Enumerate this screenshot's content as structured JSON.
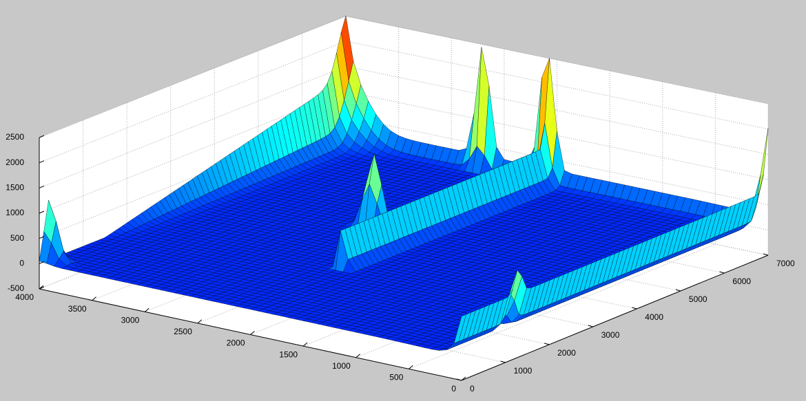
{
  "chart_data": {
    "type": "surface",
    "title": "",
    "xlabel": "",
    "ylabel": "",
    "zlabel": "",
    "xlim": [
      0,
      4000
    ],
    "ylim": [
      0,
      7000
    ],
    "zlim": [
      -500,
      2500
    ],
    "x_ticks": [
      "0",
      "500",
      "1000",
      "1500",
      "2000",
      "2500",
      "3000",
      "3500",
      "4000"
    ],
    "y_ticks": [
      "0",
      "1000",
      "2000",
      "3000",
      "4000",
      "5000",
      "6000",
      "7000"
    ],
    "z_ticks": [
      "-500",
      "0",
      "500",
      "1000",
      "1500",
      "2000",
      "2500"
    ],
    "grid": true,
    "colormap": "jet",
    "colors": {
      "background": "#c8c8c8",
      "axes_face": "#ffffff",
      "jet_low": "#00007f",
      "jet_high": "#7f0000"
    },
    "surface_features": [
      {
        "name": "outer rim wall (x = 0 edge)",
        "z_approx": 850
      },
      {
        "name": "interior raised wall",
        "z_approx": 1000
      },
      {
        "name": "back rim wall (y = 7000 edge)",
        "z_approx": 300
      },
      {
        "name": "corner ridge (x = 4000, y = 7000)",
        "z_max_approx": 2350
      },
      {
        "name": "corner spike (x = 0, y = 7000)",
        "z_max_approx": 1800
      },
      {
        "name": "spike near x = 2700, y = 7000",
        "z_max_approx": 2450
      },
      {
        "name": "spike near x = 2100, y = 7000",
        "z_max_approx": 2500
      },
      {
        "name": "spike near x = 2500, y = 4000",
        "z_max_approx": 2400
      },
      {
        "name": "spike near x = 4000, y = 200",
        "z_max_approx": 1500
      },
      {
        "name": "spike near x = 50, y = 1300",
        "z_max_approx": 1100
      },
      {
        "name": "interior floor",
        "z_approx": 0
      }
    ]
  }
}
